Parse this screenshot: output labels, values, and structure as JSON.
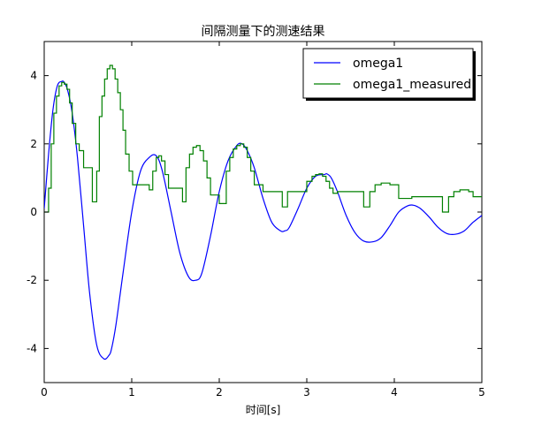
{
  "chart_data": {
    "type": "line",
    "title": "间隔测量下的测速结果",
    "xlabel": "时间[s]",
    "ylabel": "",
    "xlim": [
      0,
      5
    ],
    "ylim": [
      -5,
      5
    ],
    "xticks": [
      0,
      1,
      2,
      3,
      4,
      5
    ],
    "yticks": [
      -4,
      -2,
      0,
      2,
      4
    ],
    "xtick_labels": [
      "0",
      "1",
      "2",
      "3",
      "4",
      "5"
    ],
    "ytick_labels": [
      "-4",
      "-2",
      "0",
      "2",
      "4"
    ],
    "grid": false,
    "legend": "top-right",
    "series": [
      {
        "name": "omega1",
        "color": "#0000ff",
        "style": "line",
        "x": [
          0.0,
          0.05,
          0.1,
          0.15,
          0.2,
          0.23,
          0.27,
          0.32,
          0.38,
          0.45,
          0.52,
          0.6,
          0.68,
          0.74,
          0.77,
          0.82,
          0.9,
          1.0,
          1.1,
          1.2,
          1.28,
          1.35,
          1.45,
          1.55,
          1.65,
          1.73,
          1.8,
          1.9,
          2.0,
          2.1,
          2.2,
          2.26,
          2.32,
          2.4,
          2.5,
          2.6,
          2.7,
          2.75,
          2.8,
          2.9,
          3.0,
          3.1,
          3.2,
          3.23,
          3.28,
          3.35,
          3.45,
          3.55,
          3.65,
          3.76,
          3.85,
          3.95,
          4.05,
          4.15,
          4.22,
          4.3,
          4.4,
          4.5,
          4.6,
          4.7,
          4.8,
          4.9,
          5.0
        ],
        "y": [
          0.1,
          1.7,
          3.0,
          3.7,
          3.83,
          3.8,
          3.55,
          2.9,
          1.6,
          -0.4,
          -2.4,
          -3.9,
          -4.3,
          -4.2,
          -4.0,
          -3.3,
          -1.8,
          0.0,
          1.2,
          1.6,
          1.65,
          1.2,
          0.0,
          -1.2,
          -1.9,
          -2.0,
          -1.8,
          -0.7,
          0.6,
          1.5,
          1.95,
          2.0,
          1.8,
          1.3,
          0.4,
          -0.3,
          -0.55,
          -0.55,
          -0.45,
          0.1,
          0.7,
          1.05,
          1.1,
          1.12,
          1.0,
          0.6,
          -0.1,
          -0.6,
          -0.85,
          -0.87,
          -0.75,
          -0.4,
          0.0,
          0.18,
          0.2,
          0.1,
          -0.15,
          -0.45,
          -0.63,
          -0.65,
          -0.55,
          -0.3,
          -0.1
        ]
      },
      {
        "name": "omega1_measured",
        "color": "#008000",
        "style": "step",
        "x": [
          0.0,
          0.05,
          0.08,
          0.11,
          0.14,
          0.17,
          0.2,
          0.23,
          0.26,
          0.29,
          0.32,
          0.36,
          0.4,
          0.45,
          0.5,
          0.55,
          0.6,
          0.63,
          0.66,
          0.69,
          0.72,
          0.75,
          0.78,
          0.81,
          0.84,
          0.87,
          0.9,
          0.93,
          0.97,
          1.01,
          1.05,
          1.1,
          1.15,
          1.2,
          1.24,
          1.28,
          1.31,
          1.34,
          1.38,
          1.42,
          1.5,
          1.58,
          1.62,
          1.66,
          1.7,
          1.74,
          1.78,
          1.82,
          1.86,
          1.9,
          2.0,
          2.08,
          2.12,
          2.16,
          2.2,
          2.24,
          2.28,
          2.32,
          2.36,
          2.4,
          2.5,
          2.6,
          2.72,
          2.78,
          2.9,
          3.0,
          3.06,
          3.1,
          3.14,
          3.18,
          3.22,
          3.26,
          3.3,
          3.35,
          3.4,
          3.55,
          3.65,
          3.72,
          3.78,
          3.85,
          3.95,
          4.05,
          4.2,
          4.4,
          4.55,
          4.62,
          4.68,
          4.75,
          4.85,
          4.9,
          5.0
        ],
        "y": [
          0.0,
          0.7,
          2.0,
          2.9,
          3.4,
          3.7,
          3.8,
          3.75,
          3.6,
          3.2,
          2.6,
          2.0,
          1.8,
          1.3,
          1.3,
          0.3,
          1.2,
          2.8,
          3.4,
          3.9,
          4.2,
          4.3,
          4.2,
          3.9,
          3.5,
          3.0,
          2.4,
          1.7,
          1.2,
          0.8,
          0.8,
          0.8,
          0.8,
          0.65,
          1.2,
          1.6,
          1.65,
          1.5,
          1.1,
          0.7,
          0.7,
          0.3,
          1.3,
          1.7,
          1.9,
          1.95,
          1.8,
          1.5,
          1.0,
          0.5,
          0.25,
          1.2,
          1.6,
          1.85,
          1.95,
          2.0,
          1.9,
          1.6,
          1.2,
          0.8,
          0.6,
          0.6,
          0.15,
          0.6,
          0.6,
          0.9,
          1.05,
          1.1,
          1.12,
          1.05,
          0.9,
          0.7,
          0.55,
          0.6,
          0.6,
          0.6,
          0.15,
          0.6,
          0.8,
          0.85,
          0.8,
          0.4,
          0.45,
          0.45,
          0.0,
          0.45,
          0.6,
          0.65,
          0.6,
          0.45,
          0.45
        ]
      }
    ]
  }
}
